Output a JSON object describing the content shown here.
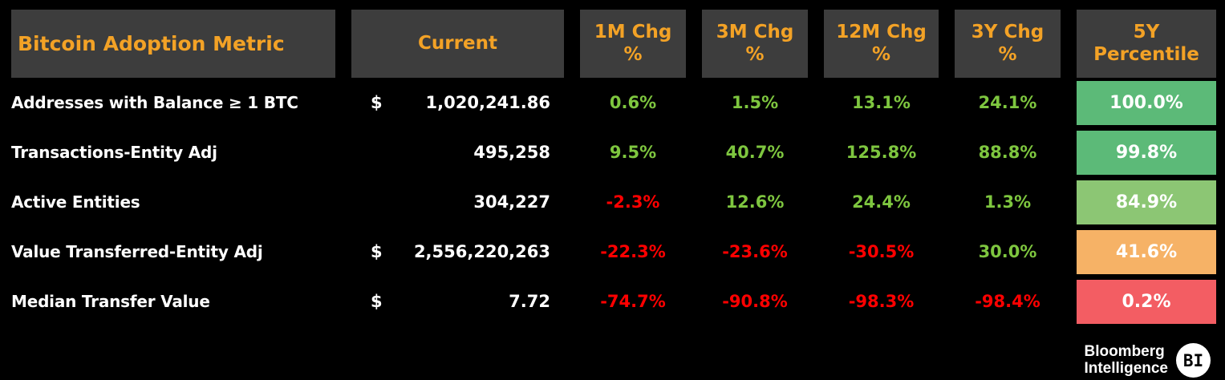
{
  "palette": {
    "background": "#000000",
    "header_bg": "#3d3d3d",
    "header_text": "#f3a226",
    "positive": "#7ec63f",
    "negative": "#ff0000",
    "white_text": "#ffffff",
    "percentile_high_green": "#5cba78",
    "percentile_mid_green": "#8cc674",
    "percentile_orange": "#f6b266",
    "percentile_red": "#f35d63"
  },
  "header": {
    "col_metric": "Bitcoin Adoption Metric",
    "col_current": "Current",
    "col_1m": "1M Chg\n%",
    "col_3m": "3M Chg\n%",
    "col_12m": "12M Chg\n%",
    "col_3y": "3Y Chg\n%",
    "col_5y": "5Y\nPercentile"
  },
  "rows": [
    {
      "metric": "Addresses with Balance ≥ 1 BTC",
      "currency": "$",
      "current": "1,020,241.86",
      "chg_1m": "0.6%",
      "chg_3m": "1.5%",
      "chg_12m": "13.1%",
      "chg_3y": "24.1%",
      "percentile": "100.0%",
      "percentile_color": "#5cba78"
    },
    {
      "metric": "Transactions-Entity Adj",
      "currency": "",
      "current": "495,258",
      "chg_1m": "9.5%",
      "chg_3m": "40.7%",
      "chg_12m": "125.8%",
      "chg_3y": "88.8%",
      "percentile": "99.8%",
      "percentile_color": "#5cba78"
    },
    {
      "metric": "Active Entities",
      "currency": "",
      "current": "304,227",
      "chg_1m": "-2.3%",
      "chg_3m": "12.6%",
      "chg_12m": "24.4%",
      "chg_3y": "1.3%",
      "percentile": "84.9%",
      "percentile_color": "#8cc674"
    },
    {
      "metric": "Value Transferred-Entity Adj",
      "currency": "$",
      "current": "2,556,220,263",
      "chg_1m": "-22.3%",
      "chg_3m": "-23.6%",
      "chg_12m": "-30.5%",
      "chg_3y": "30.0%",
      "percentile": "41.6%",
      "percentile_color": "#f6b266"
    },
    {
      "metric": "Median Transfer Value",
      "currency": "$",
      "current": "7.72",
      "chg_1m": "-74.7%",
      "chg_3m": "-90.8%",
      "chg_12m": "-98.3%",
      "chg_3y": "-98.4%",
      "percentile": "0.2%",
      "percentile_color": "#f35d63"
    }
  ],
  "logo": {
    "line1": "Bloomberg",
    "line2": "Intelligence",
    "badge": "BI"
  },
  "chart_data": {
    "type": "table",
    "title": "Bitcoin Adoption Metric",
    "columns": [
      "Bitcoin Adoption Metric",
      "Current",
      "1M Chg %",
      "3M Chg %",
      "12M Chg %",
      "3Y Chg %",
      "5Y Percentile"
    ],
    "rows": [
      [
        "Addresses with Balance ≥ 1 BTC",
        "$ 1,020,241.86",
        0.6,
        1.5,
        13.1,
        24.1,
        100.0
      ],
      [
        "Transactions-Entity Adj",
        "495,258",
        9.5,
        40.7,
        125.8,
        88.8,
        99.8
      ],
      [
        "Active Entities",
        "304,227",
        -2.3,
        12.6,
        24.4,
        1.3,
        84.9
      ],
      [
        "Value Transferred-Entity Adj",
        "$ 2,556,220,263",
        -22.3,
        -23.6,
        -30.5,
        30.0,
        41.6
      ],
      [
        "Median Transfer Value",
        "$ 7.72",
        -74.7,
        -90.8,
        -98.3,
        -98.4,
        0.2
      ]
    ],
    "legend_position": "none",
    "notes": "Positive change values shown in green, negative in red; 5Y Percentile cells color-coded from green (high) through orange to red (low)",
    "source": "Bloomberg Intelligence"
  }
}
